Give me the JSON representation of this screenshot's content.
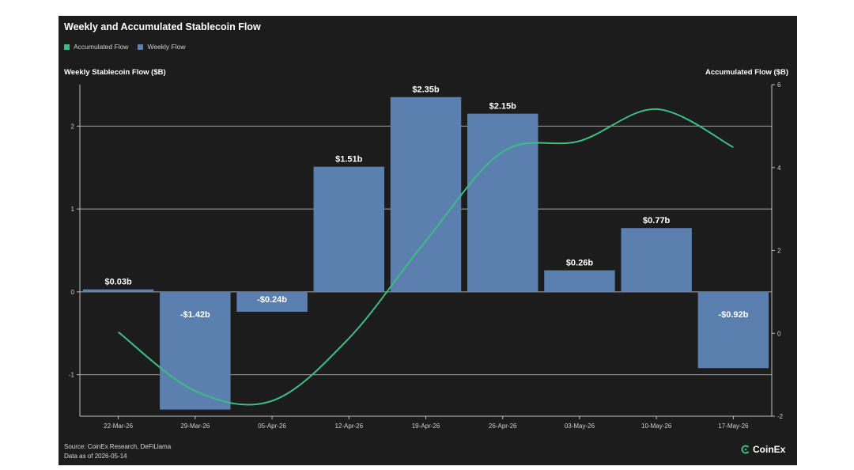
{
  "colors": {
    "background": "#1c1c1c",
    "bar": "#5b7fae",
    "line": "#3dbd84",
    "grid": "#bfbfbf",
    "text": "#ffffff",
    "tick": "#cfcfcf"
  },
  "title": "Weekly and Accumulated Stablecoin Flow",
  "legend": [
    {
      "label": "Accumulated Flow",
      "color": "#3dbd84"
    },
    {
      "label": "Weekly Flow",
      "color": "#5b7fae"
    }
  ],
  "footer": {
    "source": "Source: CoinEx Research, DeFiLlama",
    "data_as_of": "Data as of 2026-05-14"
  },
  "logo": {
    "text": "CoinEx",
    "icon": "coinex-logo-icon"
  },
  "chart_data": {
    "type": "bar",
    "title": "Weekly and Accumulated Stablecoin Flow",
    "categories": [
      "22-Mar-26",
      "29-Mar-26",
      "05-Apr-26",
      "12-Apr-26",
      "19-Apr-26",
      "26-Apr-26",
      "03-May-26",
      "10-May-26",
      "17-May-26"
    ],
    "series": [
      {
        "name": "Weekly Flow",
        "type": "bar",
        "axis": "left",
        "values": [
          0.03,
          -1.42,
          -0.24,
          1.51,
          2.35,
          2.15,
          0.26,
          0.77,
          -0.92
        ],
        "labels": [
          "$0.03b",
          "-$1.42b",
          "-$0.24b",
          "$1.51b",
          "$2.35b",
          "$2.15b",
          "$0.26b",
          "$0.77b",
          "-$0.92b"
        ]
      },
      {
        "name": "Accumulated Flow",
        "type": "line",
        "axis": "right",
        "smooth": true,
        "values": [
          0.03,
          -1.39,
          -1.63,
          -0.12,
          2.23,
          4.38,
          4.64,
          5.41,
          4.49
        ]
      }
    ],
    "ylabel_left": "Weekly Stablecoin Flow ($B)",
    "ylabel_right": "Accumulated Flow ($B)",
    "ylim_left": [
      -1.5,
      2.5
    ],
    "ylim_right": [
      -2,
      6
    ],
    "yticks_left": [
      -1,
      0,
      1,
      2
    ],
    "yticks_right": [
      -2,
      0,
      2,
      4,
      6
    ],
    "grid": true,
    "legend_position": "top-left"
  }
}
